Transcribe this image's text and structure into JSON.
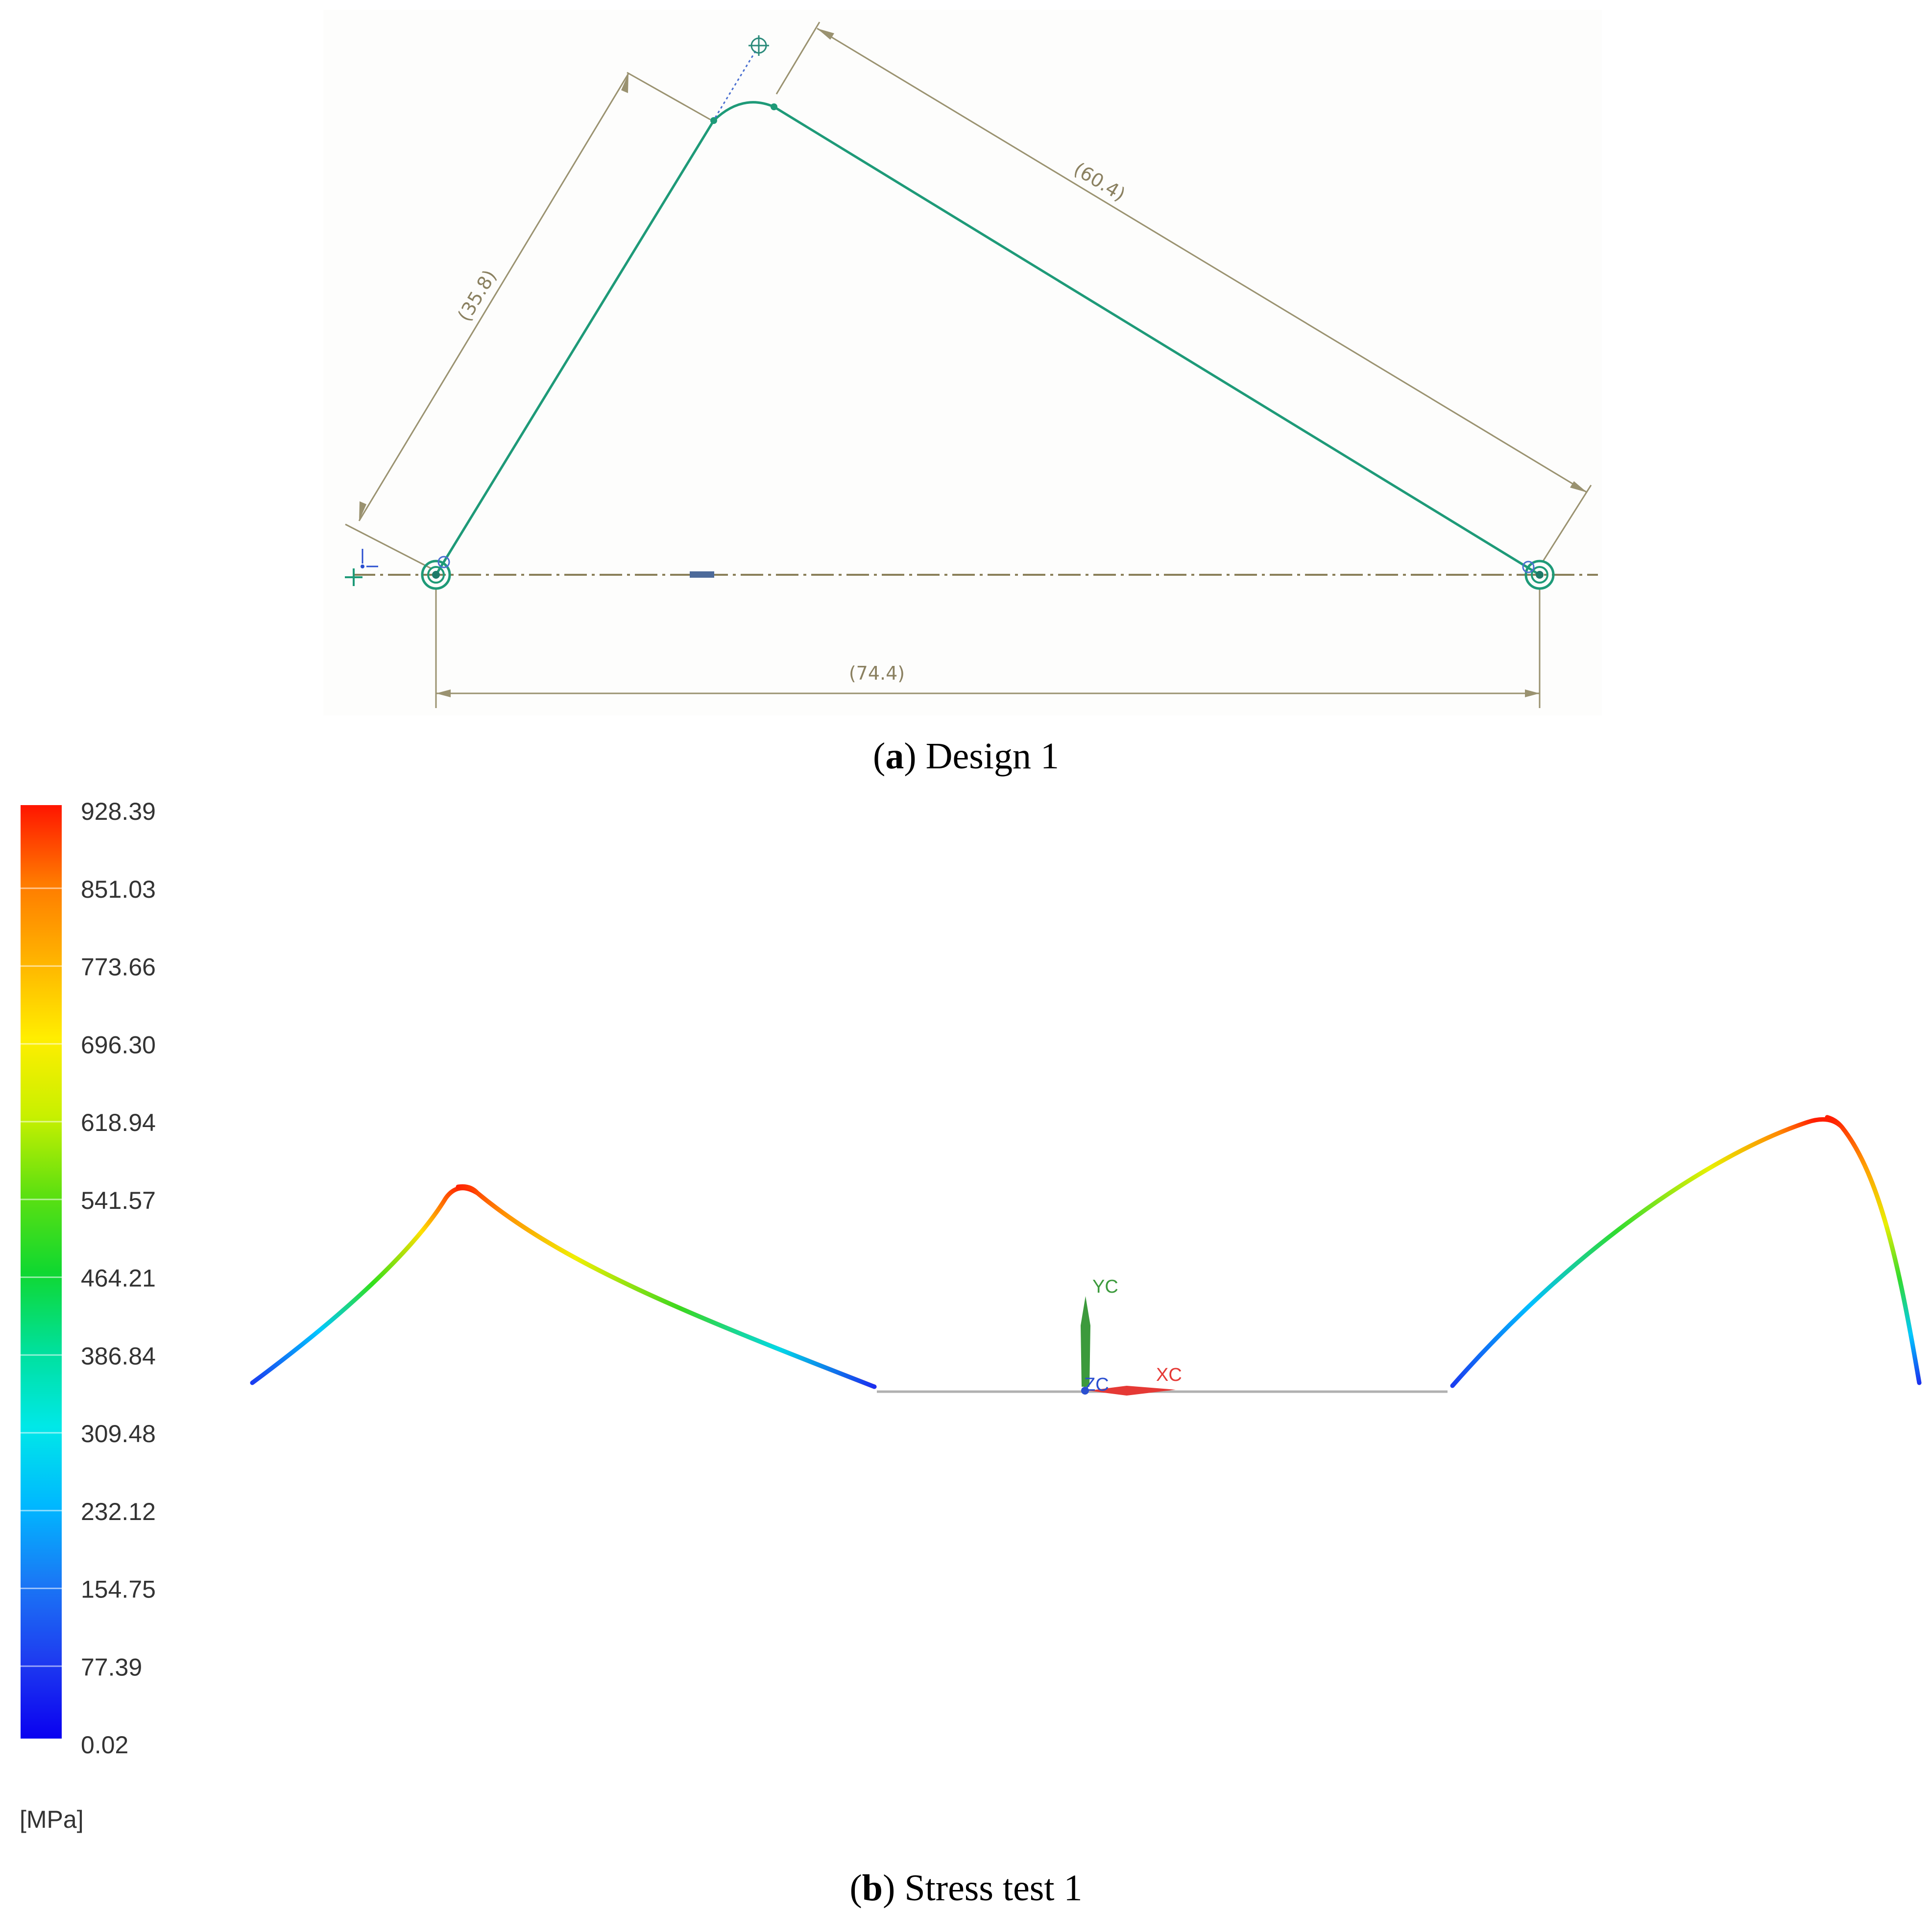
{
  "panel_a": {
    "caption_letter": "a",
    "caption_text": ") Design 1",
    "dimensions": {
      "left": "(35.8)",
      "right": "(60.4)",
      "bottom": "(74.4)"
    }
  },
  "panel_b": {
    "caption_letter": "b",
    "caption_text": ") Stress test 1",
    "legend": {
      "unit": "[MPa]",
      "values": [
        "928.39",
        "851.03",
        "773.66",
        "696.30",
        "618.94",
        "541.57",
        "464.21",
        "386.84",
        "309.48",
        "232.12",
        "154.75",
        "77.39",
        "0.02"
      ],
      "colors_top_to_bottom": [
        "#ff1a00",
        "#ff7a00",
        "#ffb300",
        "#ffe800",
        "#d8f000",
        "#7ee000",
        "#1bd822",
        "#00e08c",
        "#00e6d8",
        "#00b8ff",
        "#1a78f5",
        "#1e3cf0",
        "#0a00f0"
      ]
    },
    "axes": {
      "y_label": "YC",
      "x_label": "XC",
      "z_label": "ZC",
      "y_color": "#3c9a3c",
      "x_color": "#e53935",
      "z_color": "#2a4fd0"
    }
  },
  "colors": {
    "sketch_line": "#1e9a78",
    "dimension": "#9a9270",
    "centerline": "#8a805a"
  }
}
